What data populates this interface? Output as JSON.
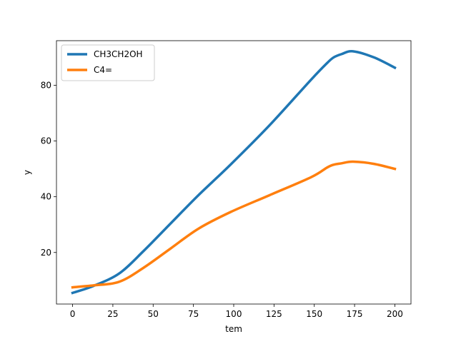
{
  "chart_data": {
    "type": "line",
    "title": "",
    "xlabel": "tem",
    "ylabel": "y",
    "xlim": [
      -10,
      210
    ],
    "ylim": [
      1.5,
      96
    ],
    "xticks": [
      0,
      25,
      50,
      75,
      100,
      125,
      150,
      175,
      200
    ],
    "xtick_labels": [
      "0",
      "25",
      "50",
      "75",
      "100",
      "125",
      "150",
      "175",
      "200"
    ],
    "yticks": [
      20,
      40,
      60,
      80
    ],
    "ytick_labels": [
      "20",
      "40",
      "60",
      "80"
    ],
    "grid": false,
    "legend_position": "top-left",
    "x": [
      0,
      13,
      29,
      44,
      61,
      78,
      98,
      122,
      148,
      158,
      162,
      167,
      174,
      187,
      200
    ],
    "series": [
      {
        "name": "CH3CH2OH",
        "color": "#1f77b4",
        "values": [
          5.5,
          8.0,
          12.5,
          20.5,
          30.5,
          40.5,
          51.5,
          65.5,
          82.0,
          88.0,
          90.0,
          91.2,
          92.2,
          90.0,
          86.3
        ]
      },
      {
        "name": "C4=",
        "color": "#ff7f0e",
        "values": [
          7.5,
          8.2,
          9.5,
          14.5,
          21.5,
          28.5,
          34.5,
          40.5,
          47.0,
          50.5,
          51.5,
          52.0,
          52.6,
          51.8,
          50.0
        ]
      }
    ]
  }
}
